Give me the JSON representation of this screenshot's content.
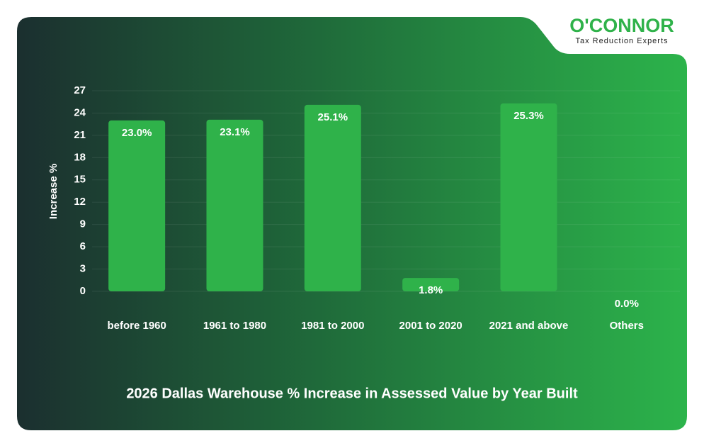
{
  "brand": {
    "name": "O'CONNOR",
    "tagline": "Tax Reduction Experts"
  },
  "chart_data": {
    "type": "bar",
    "title": "2026 Dallas Warehouse % Increase in Assessed Value by Year Built",
    "y_label": "Increase %",
    "categories": [
      "before 1960",
      "1961 to 1980",
      "1981 to 2000",
      "2001 to 2020",
      "2021 and above",
      "Others"
    ],
    "values": [
      23.0,
      23.1,
      25.1,
      1.8,
      25.3,
      0.0
    ],
    "value_labels": [
      "23.0%",
      "23.1%",
      "25.1%",
      "1.8%",
      "25.3%",
      "0.0%"
    ],
    "color": "#2fb24a",
    "ylim": [
      0,
      27
    ],
    "yticks": [
      0,
      3,
      6,
      9,
      12,
      15,
      18,
      21,
      24,
      27
    ],
    "grid": true
  }
}
